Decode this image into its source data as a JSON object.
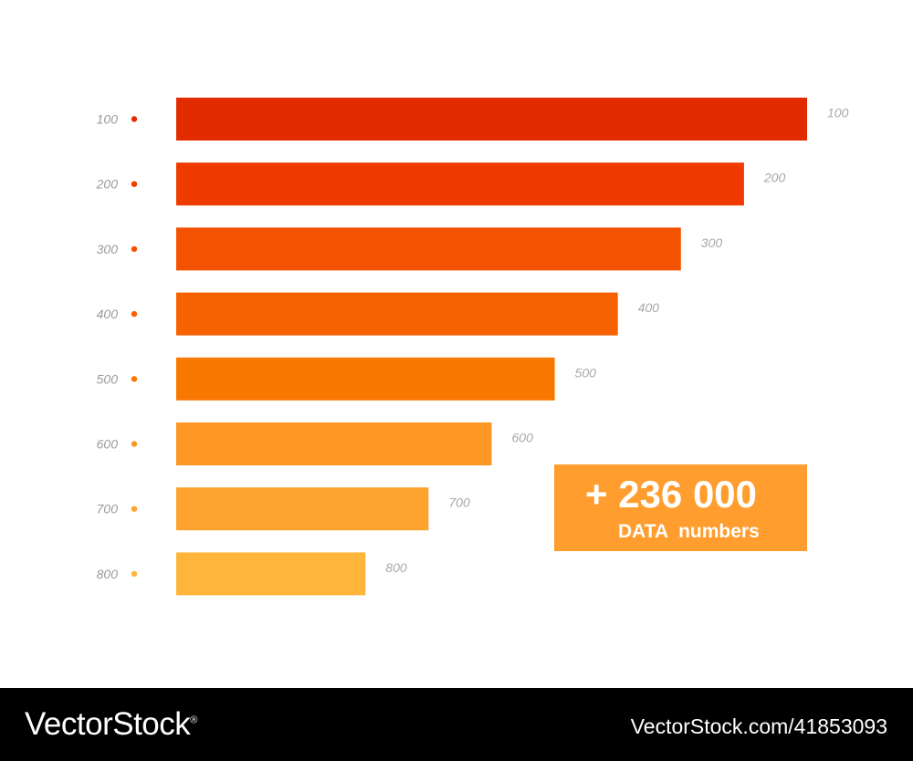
{
  "chart_data": {
    "type": "bar",
    "orientation": "horizontal",
    "categories": [
      "100",
      "200",
      "300",
      "400",
      "500",
      "600",
      "700",
      "800"
    ],
    "value_labels": [
      "100",
      "200",
      "300",
      "400",
      "500",
      "600",
      "700",
      "800"
    ],
    "relative_lengths": [
      1.0,
      0.9,
      0.8,
      0.7,
      0.6,
      0.5,
      0.4,
      0.3
    ],
    "colors": [
      "#e32b00",
      "#ef3a00",
      "#f35200",
      "#f76100",
      "#f97800",
      "#fd9622",
      "#fea330",
      "#ffb53a"
    ],
    "grid": false,
    "legend": "none"
  },
  "callout": {
    "number": "+ 236 000",
    "caption": "DATA  numbers",
    "color": "#ff9d2e"
  },
  "footer": {
    "brand": "VectorStock",
    "trademark": "®",
    "image_id": "VectorStock.com/41853093"
  }
}
